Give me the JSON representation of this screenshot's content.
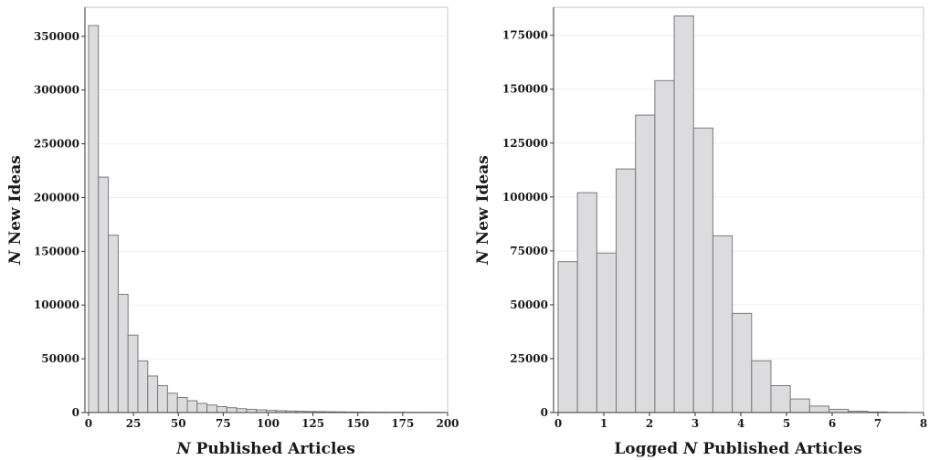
{
  "chart_data": [
    {
      "type": "bar",
      "subtype": "histogram",
      "title": "",
      "xlabel_prefix": "N",
      "xlabel_suffix": " Published Articles",
      "ylabel_prefix": "N",
      "ylabel_suffix": " New Ideas",
      "xlim": [
        -2,
        200
      ],
      "ylim": [
        0,
        377000
      ],
      "xticks": [
        0,
        25,
        50,
        75,
        100,
        125,
        150,
        175,
        200
      ],
      "yticks": [
        0,
        50000,
        100000,
        150000,
        200000,
        250000,
        300000,
        350000
      ],
      "grid": true,
      "bin_width": 5.5,
      "bin_edges_start": 0,
      "values": [
        360000,
        219000,
        165000,
        110000,
        72000,
        48000,
        34000,
        25000,
        18000,
        14000,
        11000,
        8500,
        7000,
        5500,
        4500,
        3600,
        3000,
        2500,
        2000,
        1700,
        1400,
        1200,
        1000,
        850,
        700,
        600,
        500,
        420,
        350,
        300,
        250,
        210,
        180,
        150,
        120,
        100
      ]
    },
    {
      "type": "bar",
      "subtype": "histogram",
      "title": "",
      "xlabel_prefix": "Logged ",
      "xlabel_italic": "N",
      "xlabel_suffix": " Published Articles",
      "ylabel_prefix": "N",
      "ylabel_suffix": " New Ideas",
      "xlim": [
        -0.1,
        8
      ],
      "ylim": [
        0,
        188000
      ],
      "xticks": [
        0,
        1,
        2,
        3,
        4,
        5,
        6,
        7,
        8
      ],
      "yticks": [
        0,
        25000,
        50000,
        75000,
        100000,
        125000,
        150000,
        175000
      ],
      "grid": true,
      "bin_width": 0.4236,
      "bin_edges_start": 0,
      "values": [
        70000,
        102000,
        74000,
        113000,
        138000,
        154000,
        184000,
        132000,
        82000,
        46000,
        24000,
        12500,
        6300,
        3000,
        1500,
        600,
        250,
        80
      ]
    }
  ]
}
